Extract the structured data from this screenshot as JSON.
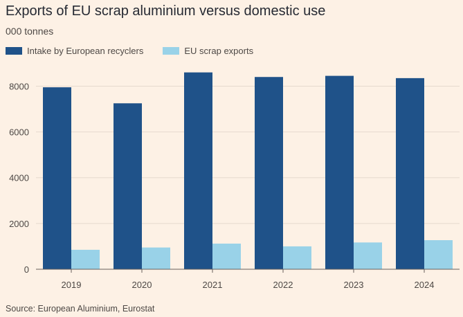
{
  "title": "Exports of EU scrap aluminium versus domestic use",
  "subtitle": "000 tonnes",
  "source": "Source: European Aluminium, Eurostat",
  "colors": {
    "background": "#fdf1e5",
    "series1": "#1f5289",
    "series2": "#99d2e8",
    "grid": "#e6d9ce",
    "axis": "#66605c"
  },
  "chart_data": {
    "type": "bar",
    "title": "Exports of EU scrap aluminium versus domestic use",
    "subtitle": "000 tonnes",
    "xlabel": "",
    "ylabel": "",
    "categories": [
      "2019",
      "2020",
      "2021",
      "2022",
      "2023",
      "2024"
    ],
    "series": [
      {
        "name": "Intake by European recyclers",
        "values": [
          7950,
          7250,
          8600,
          8400,
          8450,
          8350
        ]
      },
      {
        "name": "EU scrap exports",
        "values": [
          850,
          950,
          1120,
          1000,
          1170,
          1270
        ]
      }
    ],
    "ylim": [
      0,
      8800
    ],
    "yticks": [
      0,
      2000,
      4000,
      6000,
      8000
    ],
    "grid": true,
    "legend": "top-left"
  }
}
